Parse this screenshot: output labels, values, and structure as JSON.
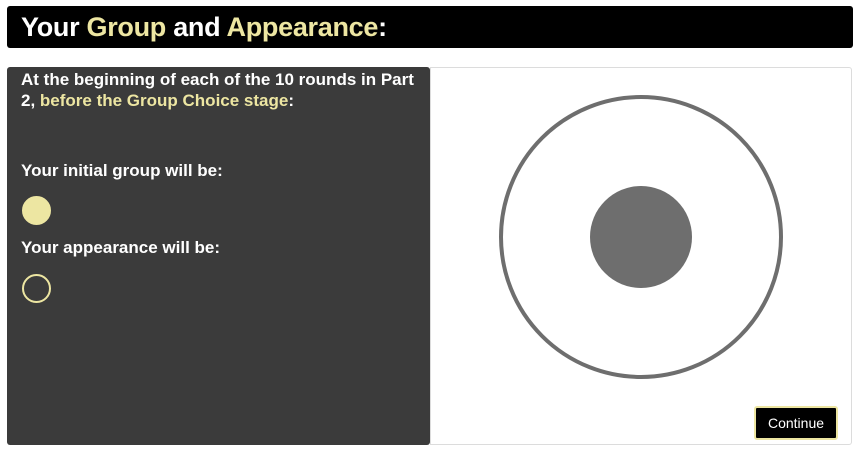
{
  "header": {
    "title_part1": "Your ",
    "title_group": "Group",
    "title_part2": " and ",
    "title_appearance": "Appearance",
    "title_part3": ":"
  },
  "left_panel": {
    "intro_part1": "At the beginning of each of the 10 rounds in Part 2, ",
    "intro_highlight": "before the Group Choice stage",
    "intro_part2": ":",
    "group_label": "Your initial group will be:",
    "appearance_label": "Your appearance will be:",
    "group_indicator": "filled-circle",
    "appearance_indicator": "empty-circle"
  },
  "right_panel": {
    "figure": "ring-with-dot"
  },
  "buttons": {
    "continue_label": "Continue"
  },
  "colors": {
    "highlight": "#ede6a2",
    "panel_dark": "#3b3b3b",
    "header_bg": "#000000",
    "figure_gray": "#6e6e6e"
  }
}
